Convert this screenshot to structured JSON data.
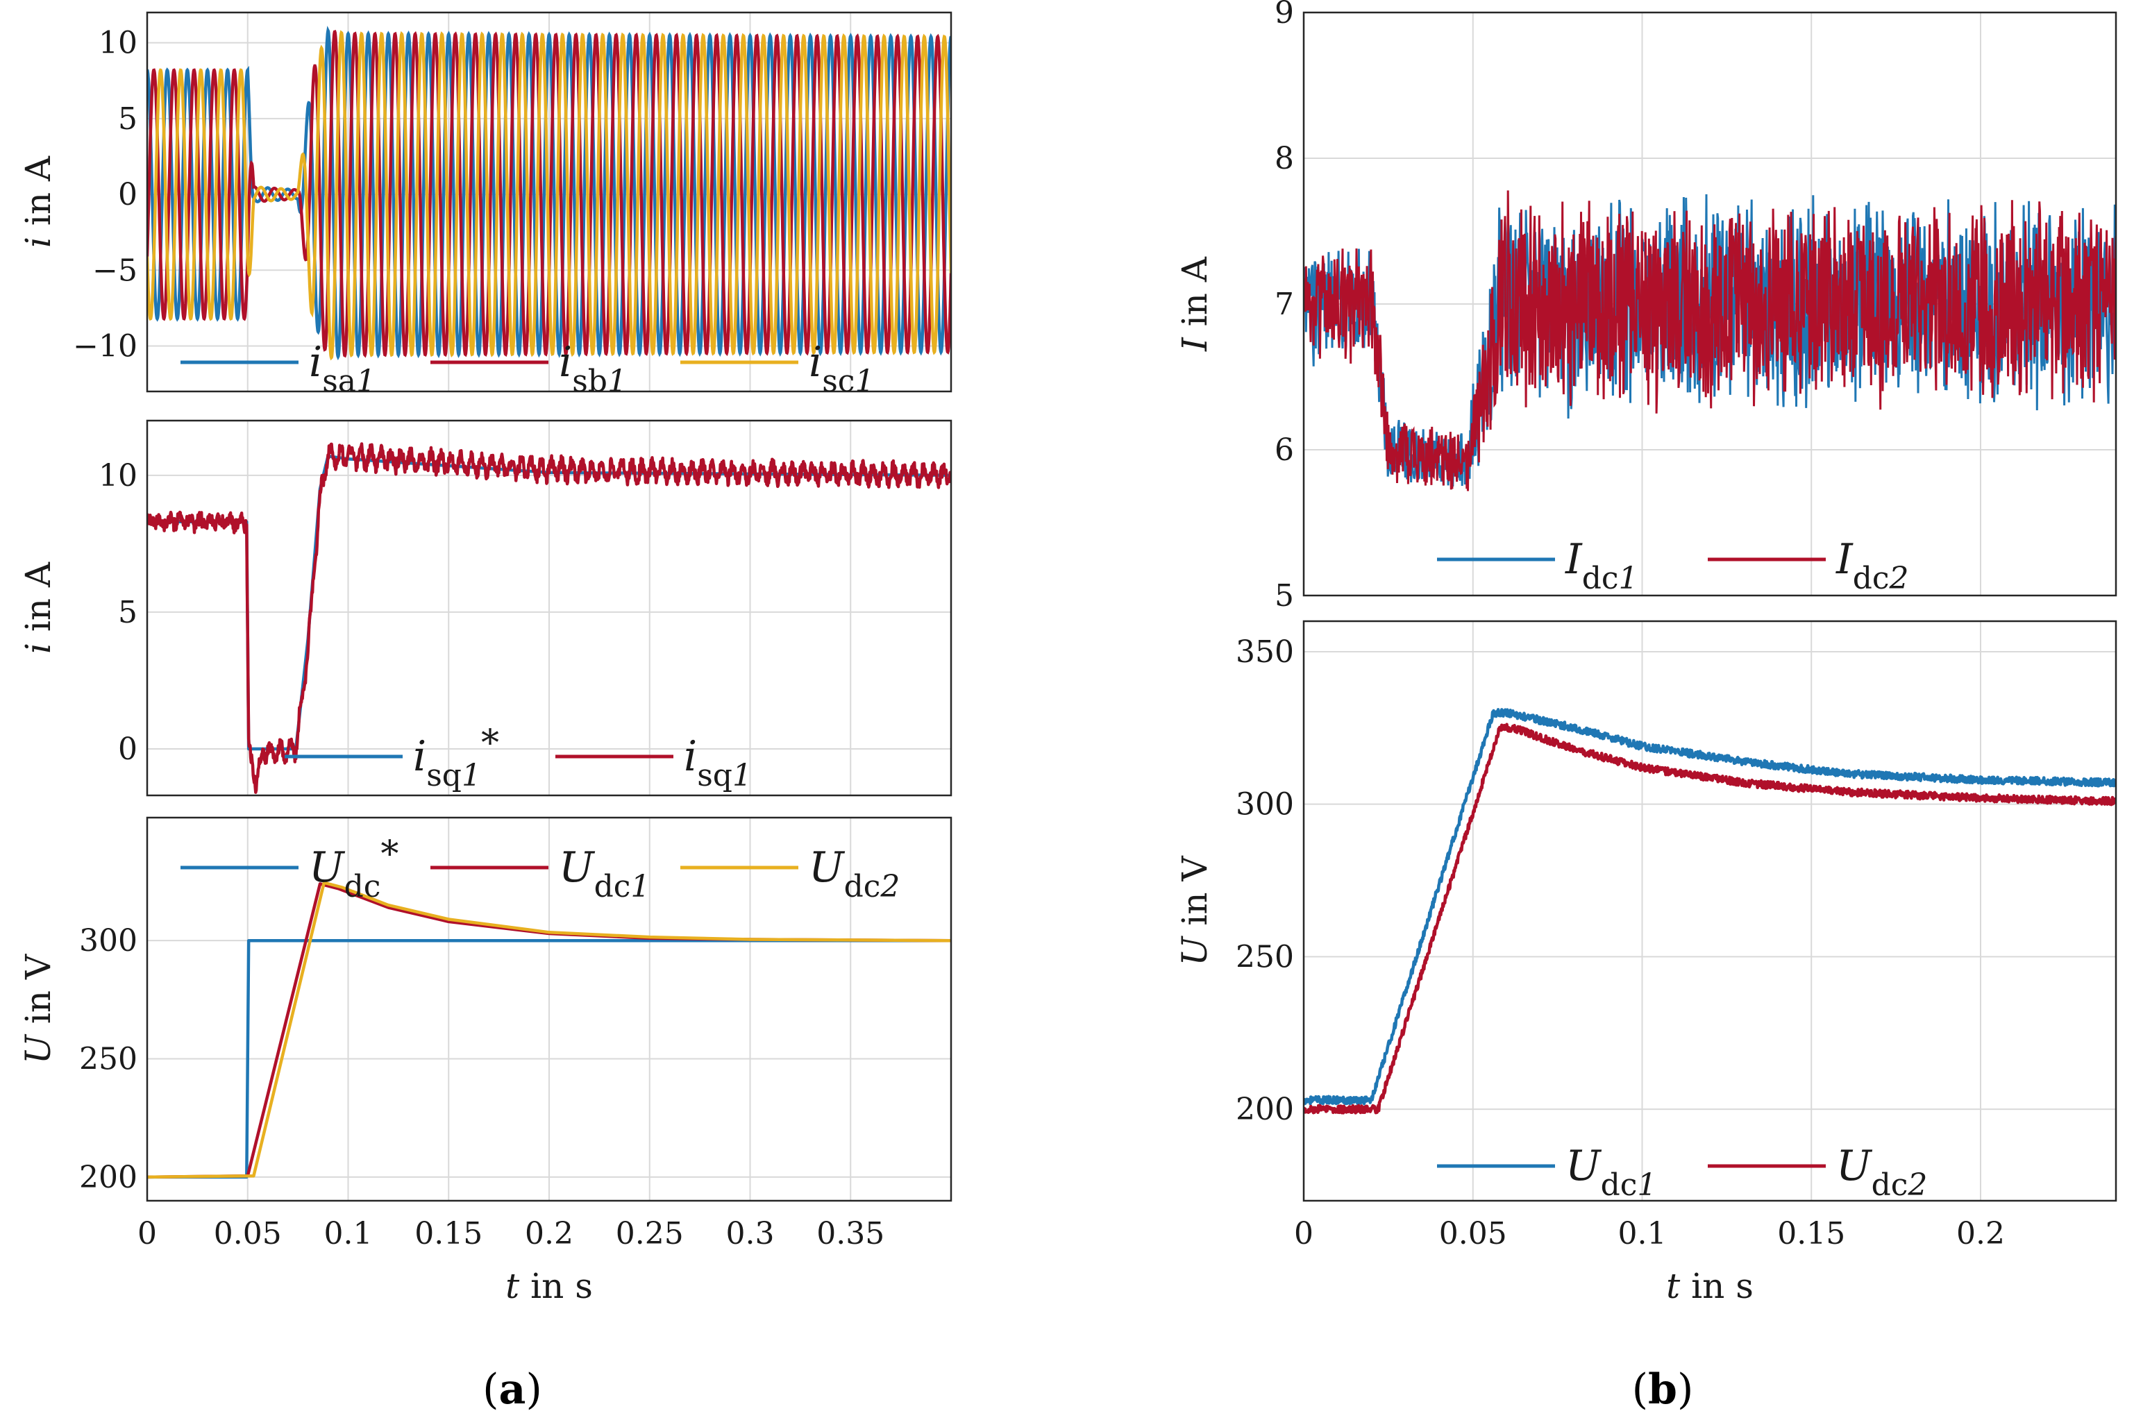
{
  "colors": {
    "blue": "#1f77b4",
    "red": "#b0102a",
    "yellow": "#e8b020",
    "grid": "#d9d9d9"
  },
  "captions": {
    "a": "a",
    "b": "b"
  },
  "chart_data": [
    {
      "id": "a1",
      "type": "line",
      "ylabel_var": "i",
      "ylabel_unit": " in A",
      "xlim": [
        0,
        0.4
      ],
      "ylim": [
        -13,
        12
      ],
      "xticks": [
        0,
        0.05,
        0.1,
        0.15,
        0.2,
        0.25,
        0.3,
        0.35
      ],
      "yticks": [
        10,
        5,
        0,
        -5,
        -10
      ],
      "ytick_labels": [
        "10",
        "5",
        "0",
        "−5",
        "−10"
      ],
      "legend": "bottom",
      "series": [
        {
          "name": "i",
          "sub": "sa",
          "sub_it": "1",
          "color": "blue",
          "waveform": "sine",
          "freq_hz": 100,
          "phase_deg": 90,
          "amplitude": [
            [
              0,
              8.2
            ],
            [
              0.05,
              8.2
            ],
            [
              0.053,
              0.5
            ],
            [
              0.075,
              0.3
            ],
            [
              0.082,
              8
            ],
            [
              0.09,
              10.8
            ],
            [
              0.1,
              10.6
            ],
            [
              0.4,
              10.4
            ]
          ]
        },
        {
          "name": "i",
          "sub": "sb",
          "sub_it": "1",
          "color": "red",
          "waveform": "sine",
          "freq_hz": 100,
          "phase_deg": -30,
          "amplitude": [
            [
              0,
              8.2
            ],
            [
              0.05,
              8.2
            ],
            [
              0.053,
              0.5
            ],
            [
              0.075,
              0.3
            ],
            [
              0.082,
              8
            ],
            [
              0.09,
              10.8
            ],
            [
              0.1,
              10.6
            ],
            [
              0.4,
              10.4
            ]
          ]
        },
        {
          "name": "i",
          "sub": "sc",
          "sub_it": "1",
          "color": "yellow",
          "waveform": "sine",
          "freq_hz": 100,
          "phase_deg": 210,
          "amplitude": [
            [
              0,
              8.2
            ],
            [
              0.05,
              8.2
            ],
            [
              0.053,
              0.5
            ],
            [
              0.075,
              0.3
            ],
            [
              0.082,
              8
            ],
            [
              0.09,
              10.8
            ],
            [
              0.1,
              10.6
            ],
            [
              0.4,
              10.4
            ]
          ]
        }
      ]
    },
    {
      "id": "a2",
      "type": "line",
      "ylabel_var": "i",
      "ylabel_unit": " in A",
      "xlim": [
        0,
        0.4
      ],
      "ylim": [
        -1.7,
        12
      ],
      "xticks": [
        0,
        0.05,
        0.1,
        0.15,
        0.2,
        0.25,
        0.3,
        0.35
      ],
      "yticks": [
        10,
        5,
        0
      ],
      "ytick_labels": [
        "10",
        "5",
        "0"
      ],
      "legend": "bottom",
      "series": [
        {
          "name": "i",
          "sub": "sq",
          "sub_it": "1",
          "star": true,
          "color": "blue",
          "points": [
            [
              0,
              8.3
            ],
            [
              0.0495,
              8.3
            ],
            [
              0.0505,
              0
            ],
            [
              0.074,
              0
            ],
            [
              0.08,
              4
            ],
            [
              0.086,
              9.5
            ],
            [
              0.09,
              10.7
            ],
            [
              0.1,
              10.6
            ],
            [
              0.2,
              10.1
            ],
            [
              0.4,
              10.0
            ]
          ]
        },
        {
          "name": "i",
          "sub": "sq",
          "sub_it": "1",
          "color": "red",
          "noise": 0.25,
          "ripple": {
            "freq_hz": 200,
            "amp": [
              [
                0,
                0.1
              ],
              [
                0.09,
                0.3
              ],
              [
                0.4,
                0.25
              ]
            ]
          },
          "points": [
            [
              0,
              8.3
            ],
            [
              0.0495,
              8.3
            ],
            [
              0.0505,
              0
            ],
            [
              0.054,
              -1.2
            ],
            [
              0.058,
              -0.1
            ],
            [
              0.074,
              0
            ],
            [
              0.08,
              3.6
            ],
            [
              0.086,
              9.2
            ],
            [
              0.09,
              10.7
            ],
            [
              0.1,
              10.7
            ],
            [
              0.2,
              10.2
            ],
            [
              0.4,
              10.0
            ]
          ]
        }
      ]
    },
    {
      "id": "a3",
      "type": "line",
      "ylabel_var": "U",
      "ylabel_unit": " in V",
      "xlim": [
        0,
        0.4
      ],
      "ylim": [
        190,
        352
      ],
      "xticks": [
        0,
        0.05,
        0.1,
        0.15,
        0.2,
        0.25,
        0.3,
        0.35
      ],
      "xtick_labels": [
        "0",
        "0.05",
        "0.1",
        "0.15",
        "0.2",
        "0.25",
        "0.3",
        "0.35"
      ],
      "yticks": [
        300,
        250,
        200
      ],
      "ytick_labels": [
        "300",
        "250",
        "200"
      ],
      "xlabel_var": "t",
      "xlabel_unit": " in s",
      "legend": "top",
      "series": [
        {
          "name": "U",
          "sub": "dc",
          "star": true,
          "color": "blue",
          "points": [
            [
              0,
              200
            ],
            [
              0.0495,
              200
            ],
            [
              0.0505,
              300
            ],
            [
              0.4,
              300
            ]
          ]
        },
        {
          "name": "U",
          "sub": "dc",
          "sub_it": "1",
          "color": "red",
          "points": [
            [
              0,
              200
            ],
            [
              0.05,
              200.5
            ],
            [
              0.086,
              324
            ],
            [
              0.095,
              322
            ],
            [
              0.12,
              314
            ],
            [
              0.15,
              308
            ],
            [
              0.2,
              303
            ],
            [
              0.25,
              301
            ],
            [
              0.3,
              300.5
            ],
            [
              0.4,
              300
            ]
          ]
        },
        {
          "name": "U",
          "sub": "dc",
          "sub_it": "2",
          "color": "yellow",
          "points": [
            [
              0,
              200
            ],
            [
              0.053,
              200.5
            ],
            [
              0.088,
              324.5
            ],
            [
              0.097,
              322.5
            ],
            [
              0.12,
              315
            ],
            [
              0.15,
              309
            ],
            [
              0.2,
              303.5
            ],
            [
              0.25,
              301.5
            ],
            [
              0.3,
              300.5
            ],
            [
              0.4,
              300
            ]
          ]
        }
      ]
    },
    {
      "id": "b1",
      "type": "line",
      "ylabel_var": "I",
      "ylabel_unit": " in A",
      "xlim": [
        0,
        0.24
      ],
      "ylim": [
        5,
        9
      ],
      "xticks": [
        0,
        0.05,
        0.1,
        0.15,
        0.2
      ],
      "yticks": [
        9,
        8,
        7,
        6,
        5
      ],
      "ytick_labels": [
        "9",
        "8",
        "7",
        "6",
        "5"
      ],
      "legend": "bottom",
      "series": [
        {
          "name": "I",
          "sub": "dc",
          "sub_it": "1",
          "color": "blue",
          "band": true,
          "center": [
            [
              0,
              7.0
            ],
            [
              0.02,
              7.0
            ],
            [
              0.025,
              6.0
            ],
            [
              0.048,
              5.9
            ],
            [
              0.055,
              6.6
            ],
            [
              0.058,
              7.0
            ],
            [
              0.24,
              7.0
            ]
          ],
          "half": [
            [
              0,
              0.45
            ],
            [
              0.02,
              0.45
            ],
            [
              0.025,
              0.25
            ],
            [
              0.048,
              0.25
            ],
            [
              0.058,
              0.8
            ],
            [
              0.24,
              0.75
            ]
          ]
        },
        {
          "name": "I",
          "sub": "dc",
          "sub_it": "2",
          "color": "red",
          "band": true,
          "center": [
            [
              0,
              7.0
            ],
            [
              0.02,
              7.0
            ],
            [
              0.025,
              6.0
            ],
            [
              0.048,
              5.9
            ],
            [
              0.055,
              6.6
            ],
            [
              0.058,
              7.0
            ],
            [
              0.24,
              7.0
            ]
          ],
          "half": [
            [
              0,
              0.45
            ],
            [
              0.02,
              0.45
            ],
            [
              0.025,
              0.25
            ],
            [
              0.048,
              0.25
            ],
            [
              0.058,
              0.8
            ],
            [
              0.24,
              0.72
            ]
          ]
        }
      ]
    },
    {
      "id": "b2",
      "type": "line",
      "ylabel_var": "U",
      "ylabel_unit": " in V",
      "xlim": [
        0,
        0.24
      ],
      "ylim": [
        170,
        360
      ],
      "xticks": [
        0,
        0.05,
        0.1,
        0.15,
        0.2
      ],
      "xtick_labels": [
        "0",
        "0.05",
        "0.1",
        "0.15",
        "0.2"
      ],
      "yticks": [
        350,
        300,
        250,
        200
      ],
      "ytick_labels": [
        "350",
        "300",
        "250",
        "200"
      ],
      "xlabel_var": "t",
      "xlabel_unit": " in s",
      "legend": "bottom",
      "series": [
        {
          "name": "U",
          "sub": "dc",
          "sub_it": "1",
          "color": "blue",
          "noise": 1.2,
          "points": [
            [
              0,
              203
            ],
            [
              0.02,
              203
            ],
            [
              0.056,
              330
            ],
            [
              0.06,
              330
            ],
            [
              0.08,
              325
            ],
            [
              0.1,
              319
            ],
            [
              0.13,
              314
            ],
            [
              0.16,
              310
            ],
            [
              0.2,
              308
            ],
            [
              0.24,
              307
            ]
          ]
        },
        {
          "name": "U",
          "sub": "dc",
          "sub_it": "2",
          "color": "red",
          "noise": 1.2,
          "points": [
            [
              0,
              200
            ],
            [
              0.022,
              200
            ],
            [
              0.058,
              325
            ],
            [
              0.062,
              325
            ],
            [
              0.08,
              318
            ],
            [
              0.1,
              312
            ],
            [
              0.13,
              307
            ],
            [
              0.16,
              304
            ],
            [
              0.2,
              302
            ],
            [
              0.24,
              301
            ]
          ]
        }
      ]
    }
  ]
}
